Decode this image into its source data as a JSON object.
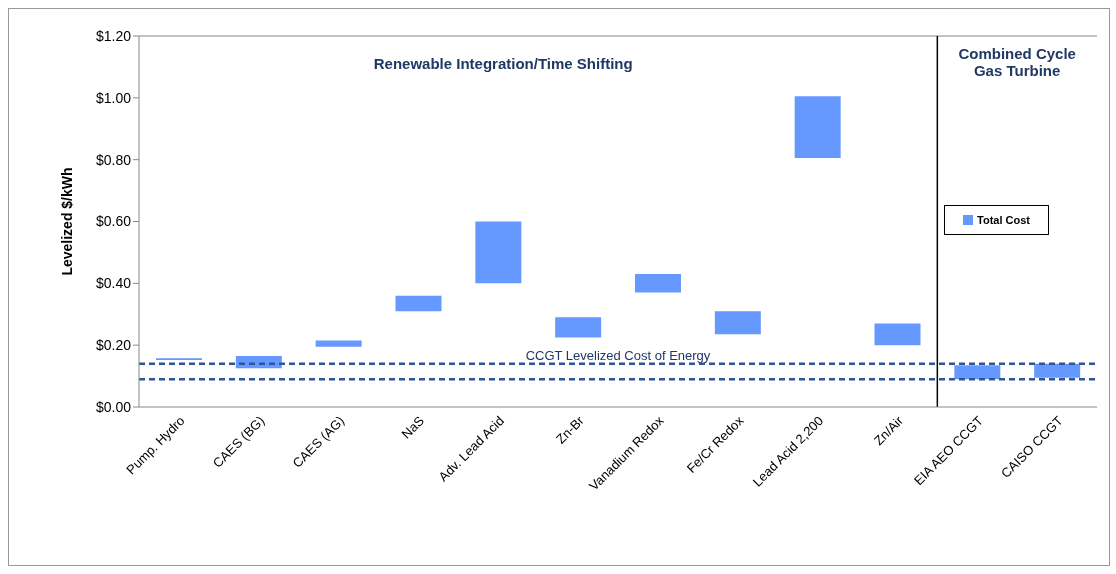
{
  "chart_data": {
    "type": "bar",
    "ylabel": "Levelized $/kWh",
    "categories": [
      "Pump. Hydro",
      "CAES (BG)",
      "CAES (AG)",
      "NaS",
      "Adv. Lead Acid",
      "Zn-Br",
      "Vanadium Redox",
      "Fe/Cr Redox",
      "Lead Acid 2,200",
      "Zn/Air",
      "EIA AEO CCGT",
      "CAISO CCGT"
    ],
    "series": [
      {
        "name": "Total Cost",
        "color": "#6699ff",
        "values": [
          0.006,
          0.04,
          0.02,
          0.05,
          0.2,
          0.065,
          0.06,
          0.075,
          0.2,
          0.07,
          0.045,
          0.045
        ],
        "base": [
          0.152,
          0.125,
          0.195,
          0.31,
          0.4,
          0.225,
          0.37,
          0.235,
          0.805,
          0.2,
          0.09,
          0.095
        ]
      }
    ],
    "ylim": [
      0,
      1.2
    ],
    "yticks": [
      {
        "value": 0,
        "label": "$0.00"
      },
      {
        "value": 0.2,
        "label": "$0.20"
      },
      {
        "value": 0.4,
        "label": "$0.40"
      },
      {
        "value": 0.6,
        "label": "$0.60"
      },
      {
        "value": 0.8,
        "label": "$0.80"
      },
      {
        "value": 1,
        "label": "$1.00"
      },
      {
        "value": 1.2,
        "label": "$1.20"
      }
    ],
    "ref_lines": [
      {
        "axis": "y",
        "value": 0.14,
        "label": "CCGT Levelized Cost of Energy",
        "color": "#2f5597",
        "line_style": "dashed"
      },
      {
        "axis": "y",
        "value": 0.09,
        "color": "#2f5597",
        "line_style": "dashed"
      },
      {
        "axis": "x",
        "value": "EIA AEO CCGT",
        "color": "#000000",
        "line_style": "solid"
      }
    ],
    "annotations": [
      "Renewable Integration/Time Shifting",
      "Combined Cycle Gas Turbine"
    ],
    "legend": "right"
  }
}
